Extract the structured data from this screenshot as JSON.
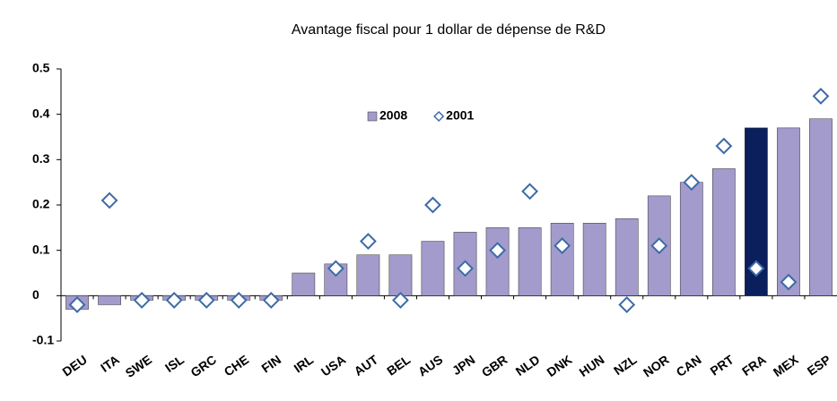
{
  "chart_data": {
    "type": "bar",
    "title": "Avantage fiscal pour 1 dollar de dépense de R&D",
    "categories": [
      "DEU",
      "ITA",
      "SWE",
      "ISL",
      "GRC",
      "CHE",
      "FIN",
      "IRL",
      "USA",
      "AUT",
      "BEL",
      "AUS",
      "JPN",
      "GBR",
      "NLD",
      "DNK",
      "HUN",
      "NZL",
      "NOR",
      "CAN",
      "PRT",
      "FRA",
      "MEX",
      "ESP"
    ],
    "series": [
      {
        "name": "2008",
        "type": "bar",
        "color": "#a29bcc",
        "point_colors": {
          "21": "#0b1f5c"
        },
        "values": [
          -0.03,
          -0.02,
          -0.01,
          -0.01,
          -0.01,
          -0.01,
          -0.01,
          0.05,
          0.07,
          0.09,
          0.09,
          0.12,
          0.14,
          0.15,
          0.15,
          0.16,
          0.16,
          0.17,
          0.22,
          0.25,
          0.28,
          0.37,
          0.37,
          0.39
        ]
      },
      {
        "name": "2001",
        "type": "scatter",
        "color": "#3d6aa8",
        "values": [
          -0.02,
          0.21,
          -0.01,
          -0.01,
          -0.01,
          -0.01,
          -0.01,
          null,
          0.06,
          0.12,
          -0.01,
          0.2,
          0.06,
          0.1,
          0.23,
          0.11,
          null,
          -0.02,
          0.11,
          0.25,
          0.33,
          0.06,
          0.03,
          0.44
        ]
      }
    ],
    "ylim": [
      -0.1,
      0.5
    ],
    "yticks": [
      -0.1,
      0,
      0.1,
      0.2,
      0.3,
      0.4,
      0.5
    ],
    "grid": false,
    "legend": "top-center"
  }
}
